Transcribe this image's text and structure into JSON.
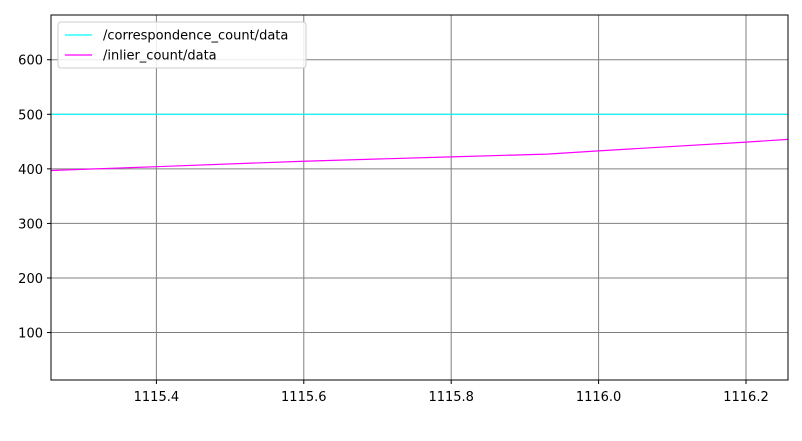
{
  "chart_data": {
    "type": "line",
    "title": "",
    "xlabel": "",
    "ylabel": "",
    "xlim": [
      1115.257,
      1116.257
    ],
    "ylim": [
      13,
      682
    ],
    "x_ticks": [
      1115.4,
      1115.6,
      1115.8,
      1116.0,
      1116.2
    ],
    "x_tick_labels": [
      "1115.4",
      "1115.6",
      "1115.8",
      "1116.0",
      "1116.2"
    ],
    "y_ticks": [
      100,
      200,
      300,
      400,
      500,
      600
    ],
    "y_tick_labels": [
      "100",
      "200",
      "300",
      "400",
      "500",
      "600"
    ],
    "grid": true,
    "legend_position": "top-left",
    "series": [
      {
        "name": "/correspondence_count/data",
        "color": "#00ffff",
        "x": [
          1115.257,
          1116.257
        ],
        "y": [
          500,
          500
        ]
      },
      {
        "name": "/inlier_count/data",
        "color": "#ff00ff",
        "x": [
          1115.257,
          1115.4,
          1115.6,
          1115.8,
          1115.93,
          1116.0,
          1116.2,
          1116.257
        ],
        "y": [
          397,
          404,
          414,
          422,
          427,
          433,
          449,
          454
        ]
      }
    ]
  }
}
